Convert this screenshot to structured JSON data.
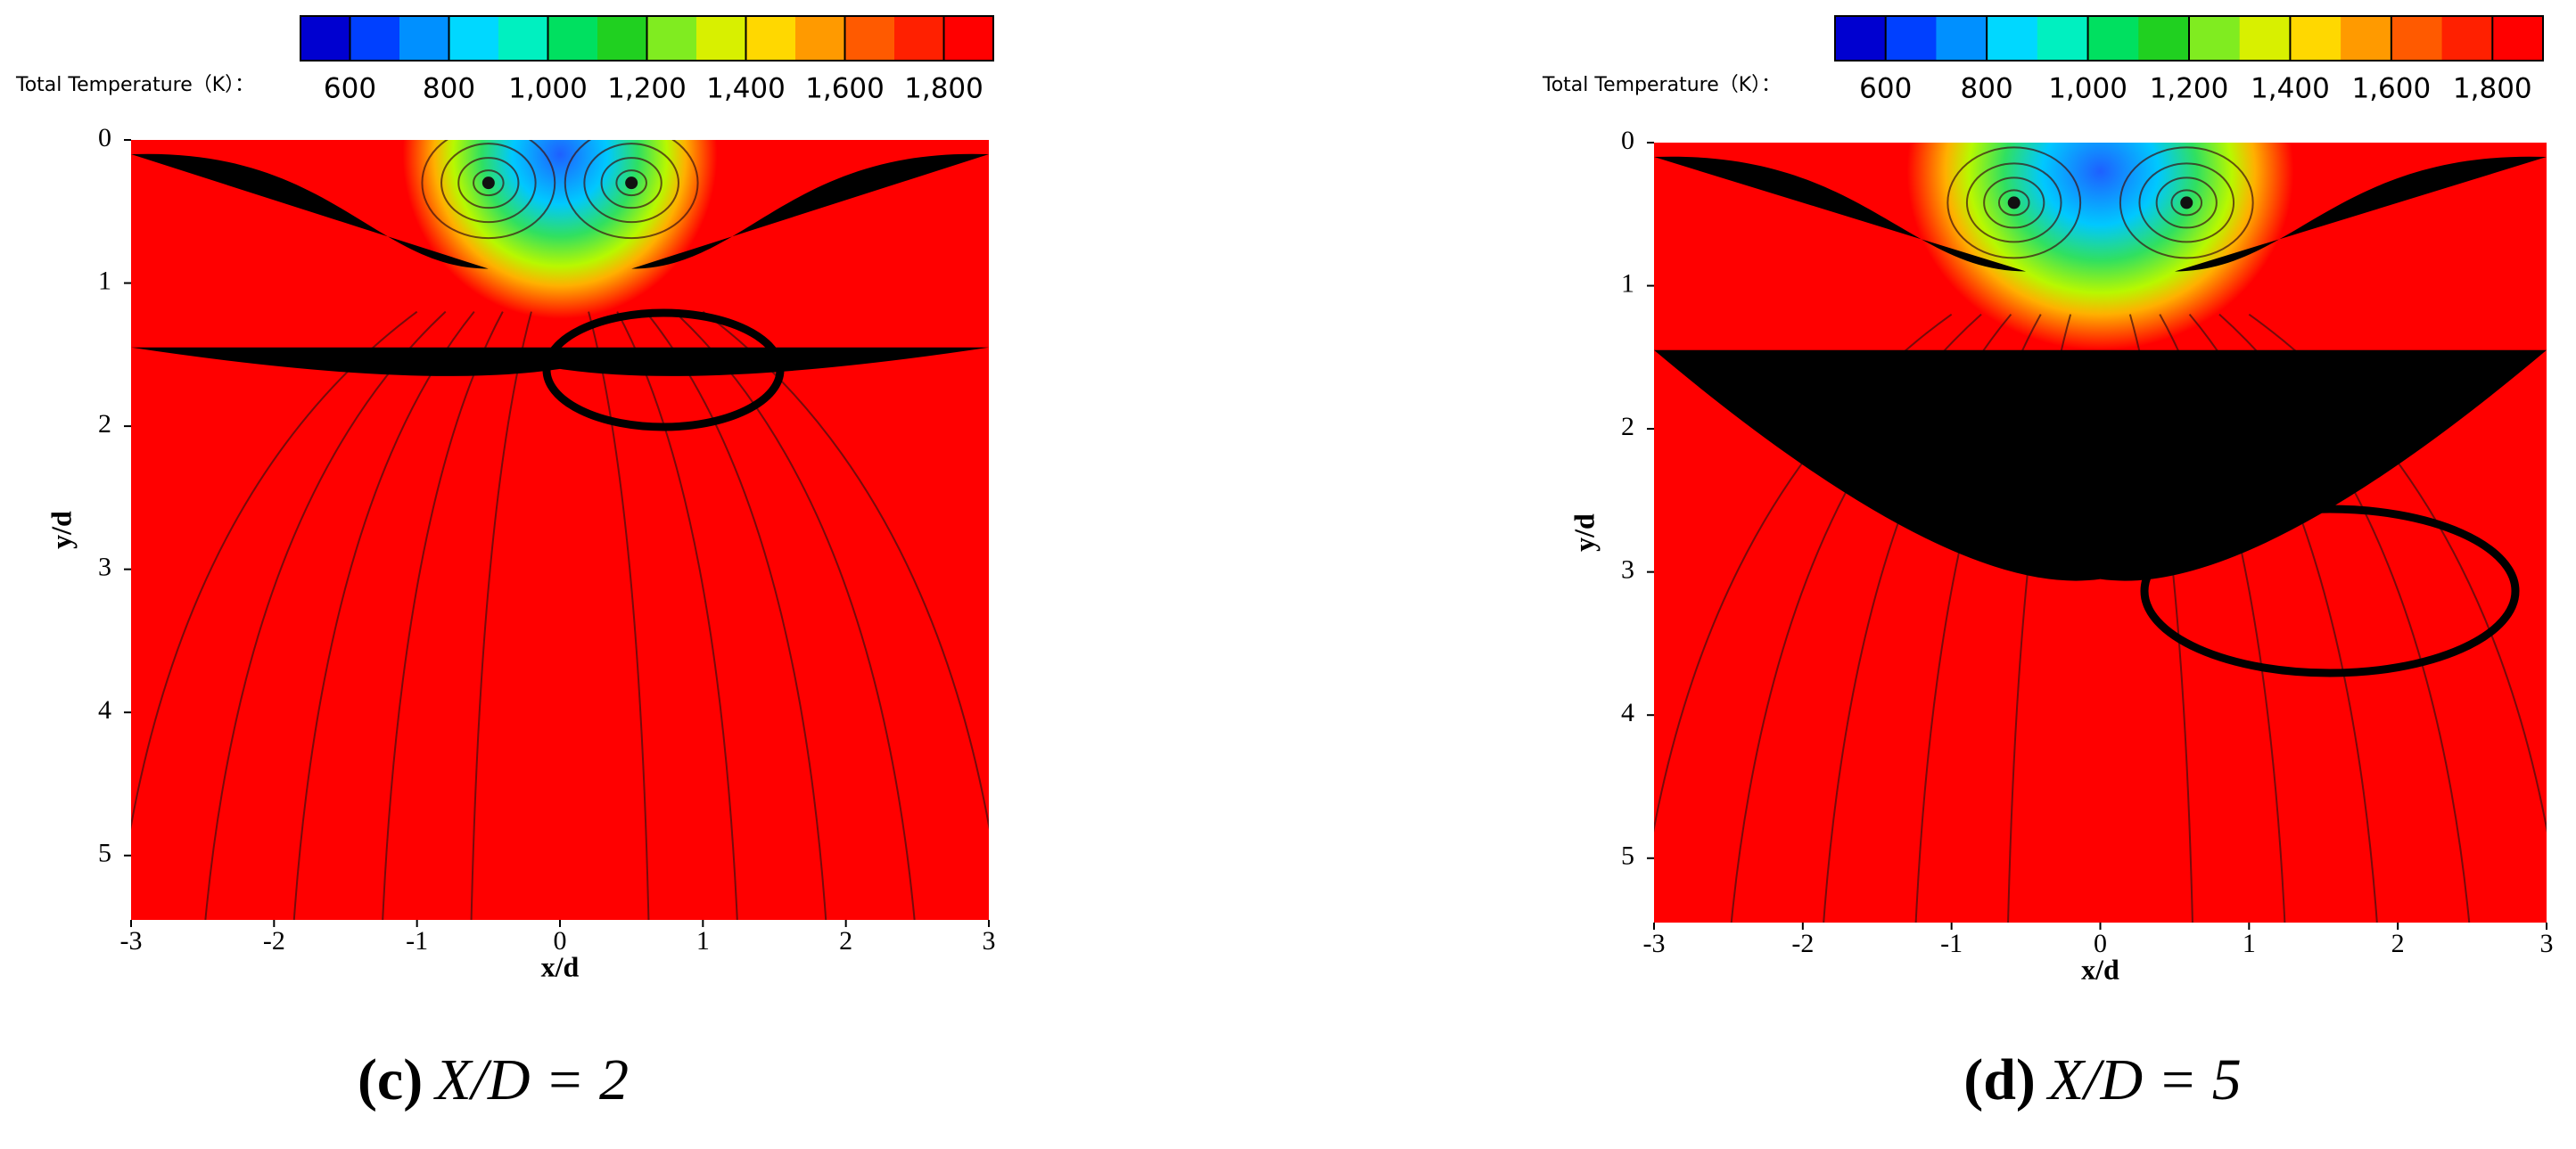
{
  "chart_data": [
    {
      "type": "contour",
      "xlabel": "x/d",
      "ylabel": "y/d",
      "xlim": [
        -3,
        3
      ],
      "ylim": [
        0,
        5.45
      ],
      "y_inverted": true,
      "xticks": [
        -3,
        -2,
        -1,
        0,
        1,
        2,
        3
      ],
      "yticks": [
        0,
        1,
        2,
        3,
        4,
        5
      ],
      "colorbar": {
        "label": "Total Temperature（K）：",
        "lim": [
          500,
          1900
        ],
        "ticks": [
          600,
          800,
          {
            "value": 1000,
            "label": "1,000"
          },
          {
            "value": 1200,
            "label": "1,200"
          },
          {
            "value": 1400,
            "label": "1,400"
          },
          {
            "value": 1600,
            "label": "1,600"
          },
          {
            "value": 1800,
            "label": "1,800"
          }
        ],
        "colors": [
          "#0000d0",
          "#0040ff",
          "#0090ff",
          "#00d8ff",
          "#00f0c0",
          "#00e060",
          "#20d020",
          "#80ec20",
          "#d8f000",
          "#ffd800",
          "#ff9a00",
          "#ff5a00",
          "#ff2000",
          "#ff0000"
        ]
      },
      "caption_label": "(c)",
      "caption": "X/D = 2"
    },
    {
      "type": "contour",
      "xlabel": "x/d",
      "ylabel": "y/d",
      "xlim": [
        -3,
        3
      ],
      "ylim": [
        0,
        5.45
      ],
      "y_inverted": true,
      "xticks": [
        -3,
        -2,
        -1,
        0,
        1,
        2,
        3
      ],
      "yticks": [
        0,
        1,
        2,
        3,
        4,
        5
      ],
      "colorbar": {
        "label": "Total Temperature（K）：",
        "lim": [
          500,
          1900
        ],
        "ticks": [
          600,
          800,
          {
            "value": 1000,
            "label": "1,000"
          },
          {
            "value": 1200,
            "label": "1,200"
          },
          {
            "value": 1400,
            "label": "1,400"
          },
          {
            "value": 1600,
            "label": "1,600"
          },
          {
            "value": 1800,
            "label": "1,800"
          }
        ],
        "colors": [
          "#0000d0",
          "#0040ff",
          "#0090ff",
          "#00d8ff",
          "#00f0c0",
          "#00e060",
          "#20d020",
          "#80ec20",
          "#d8f000",
          "#ffd800",
          "#ff9a00",
          "#ff5a00",
          "#ff2000",
          "#ff0000"
        ]
      },
      "caption_label": "(d)",
      "caption": "X/D = 5"
    }
  ]
}
